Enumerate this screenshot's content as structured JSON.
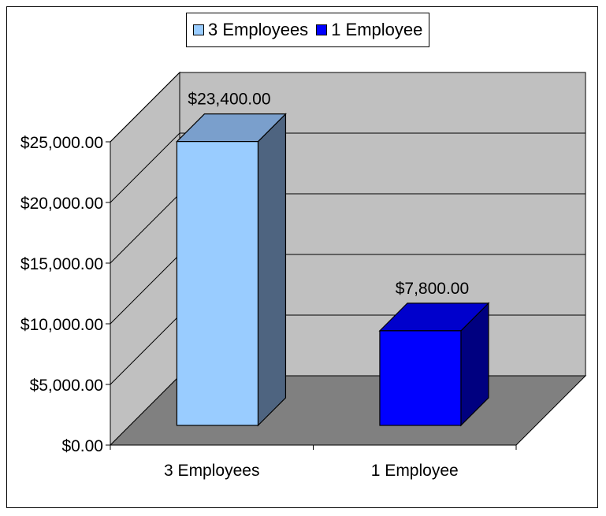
{
  "chart_data": {
    "type": "bar",
    "categories": [
      "3 Employees",
      "1 Employee"
    ],
    "values": [
      23400,
      7800
    ],
    "data_labels": [
      "$23,400.00",
      "$7,800.00"
    ],
    "ylim": [
      0,
      25000
    ],
    "yticks": [
      0,
      5000,
      10000,
      15000,
      20000,
      25000
    ],
    "ytick_labels": [
      "$0.00",
      "$5,000.00",
      "$10,000.00",
      "$15,000.00",
      "$20,000.00",
      "$25,000.00"
    ],
    "legend": {
      "placement": "top-center",
      "entries": [
        {
          "label": "3 Employees",
          "color": "#99ccff"
        },
        {
          "label": "1 Employee",
          "color": "#0000ff"
        }
      ]
    },
    "colors": {
      "bar_front": [
        "#99ccff",
        "#0000ff"
      ],
      "bar_side": [
        "#4e6480",
        "#000080"
      ],
      "bar_top": [
        "#7a9fcc",
        "#0000cc"
      ],
      "wall": "#c0c0c0",
      "floor": "#808080",
      "grid": "#000000"
    },
    "grid": true,
    "style": "3d-column"
  }
}
